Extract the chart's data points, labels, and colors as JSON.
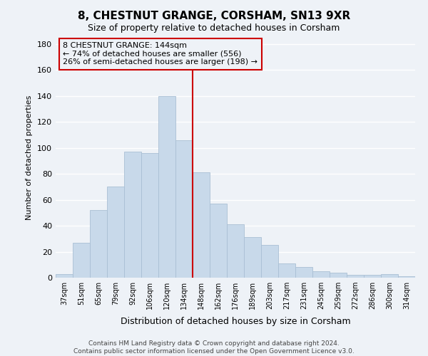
{
  "title": "8, CHESTNUT GRANGE, CORSHAM, SN13 9XR",
  "subtitle": "Size of property relative to detached houses in Corsham",
  "xlabel": "Distribution of detached houses by size in Corsham",
  "ylabel": "Number of detached properties",
  "bar_color": "#c8d9ea",
  "bar_edgecolor": "#aabfd4",
  "background_color": "#eef2f7",
  "plot_bg_color": "#eef2f7",
  "grid_color": "#ffffff",
  "categories": [
    "37sqm",
    "51sqm",
    "65sqm",
    "79sqm",
    "92sqm",
    "106sqm",
    "120sqm",
    "134sqm",
    "148sqm",
    "162sqm",
    "176sqm",
    "189sqm",
    "203sqm",
    "217sqm",
    "231sqm",
    "245sqm",
    "259sqm",
    "272sqm",
    "286sqm",
    "300sqm",
    "314sqm"
  ],
  "values": [
    3,
    27,
    52,
    70,
    97,
    96,
    140,
    106,
    81,
    57,
    41,
    31,
    25,
    11,
    8,
    5,
    4,
    2,
    2,
    3,
    1
  ],
  "ylim": [
    0,
    185
  ],
  "yticks": [
    0,
    20,
    40,
    60,
    80,
    100,
    120,
    140,
    160,
    180
  ],
  "vline_x_index": 8,
  "vline_color": "#cc0000",
  "annotation_title": "8 CHESTNUT GRANGE: 144sqm",
  "annotation_line1": "← 74% of detached houses are smaller (556)",
  "annotation_line2": "26% of semi-detached houses are larger (198) →",
  "annotation_box_edgecolor": "#cc0000",
  "footer1": "Contains HM Land Registry data © Crown copyright and database right 2024.",
  "footer2": "Contains public sector information licensed under the Open Government Licence v3.0."
}
